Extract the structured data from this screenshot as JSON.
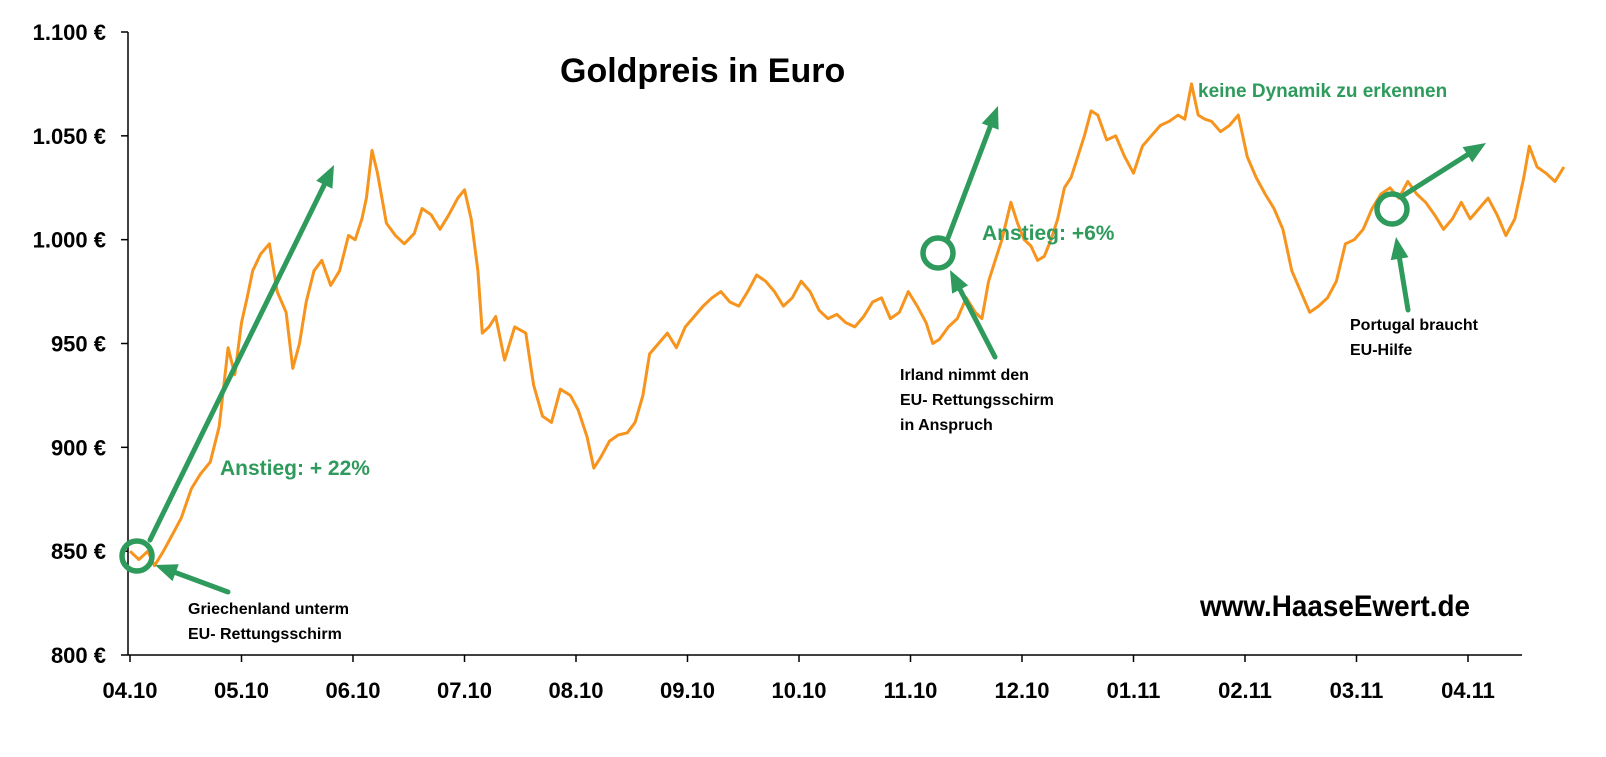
{
  "chart_data": {
    "type": "line",
    "title": "Goldpreis in Euro",
    "xlabel": "",
    "ylabel": "",
    "ylim": [
      800,
      1100
    ],
    "y_ticks": [
      "800 €",
      "850 €",
      "900 €",
      "950 €",
      "1.000 €",
      "1.050 €",
      "1.100 €"
    ],
    "x_ticks": [
      "04.10",
      "05.10",
      "06.10",
      "07.10",
      "08.10",
      "09.10",
      "10.10",
      "11.10",
      "12.10",
      "01.11",
      "02.11",
      "03.11",
      "04.11"
    ],
    "x_range_months": [
      0,
      12.6
    ],
    "line_color": "#f7941d",
    "annotation_color": "#2e9a5c",
    "series": [
      {
        "name": "",
        "points": [
          [
            0.0,
            850
          ],
          [
            0.08,
            846
          ],
          [
            0.16,
            850
          ],
          [
            0.22,
            843
          ],
          [
            0.3,
            850
          ],
          [
            0.38,
            858
          ],
          [
            0.46,
            866
          ],
          [
            0.55,
            880
          ],
          [
            0.63,
            887
          ],
          [
            0.72,
            893
          ],
          [
            0.8,
            910
          ],
          [
            0.88,
            948
          ],
          [
            0.94,
            935
          ],
          [
            1.0,
            960
          ],
          [
            1.05,
            972
          ],
          [
            1.1,
            985
          ],
          [
            1.17,
            993
          ],
          [
            1.25,
            998
          ],
          [
            1.32,
            975
          ],
          [
            1.4,
            965
          ],
          [
            1.46,
            938
          ],
          [
            1.52,
            950
          ],
          [
            1.58,
            970
          ],
          [
            1.65,
            985
          ],
          [
            1.72,
            990
          ],
          [
            1.8,
            978
          ],
          [
            1.88,
            985
          ],
          [
            1.96,
            1002
          ],
          [
            2.02,
            1000
          ],
          [
            2.08,
            1010
          ],
          [
            2.12,
            1020
          ],
          [
            2.17,
            1043
          ],
          [
            2.22,
            1032
          ],
          [
            2.3,
            1008
          ],
          [
            2.38,
            1002
          ],
          [
            2.46,
            998
          ],
          [
            2.55,
            1003
          ],
          [
            2.62,
            1015
          ],
          [
            2.7,
            1012
          ],
          [
            2.78,
            1005
          ],
          [
            2.86,
            1012
          ],
          [
            2.94,
            1020
          ],
          [
            3.0,
            1024
          ],
          [
            3.06,
            1010
          ],
          [
            3.12,
            985
          ],
          [
            3.16,
            955
          ],
          [
            3.22,
            958
          ],
          [
            3.28,
            963
          ],
          [
            3.36,
            942
          ],
          [
            3.45,
            958
          ],
          [
            3.55,
            955
          ],
          [
            3.62,
            930
          ],
          [
            3.7,
            915
          ],
          [
            3.78,
            912
          ],
          [
            3.86,
            928
          ],
          [
            3.95,
            925
          ],
          [
            4.02,
            918
          ],
          [
            4.1,
            905
          ],
          [
            4.16,
            890
          ],
          [
            4.22,
            895
          ],
          [
            4.3,
            903
          ],
          [
            4.38,
            906
          ],
          [
            4.46,
            907
          ],
          [
            4.53,
            912
          ],
          [
            4.6,
            925
          ],
          [
            4.66,
            945
          ],
          [
            4.74,
            950
          ],
          [
            4.82,
            955
          ],
          [
            4.9,
            948
          ],
          [
            4.98,
            958
          ],
          [
            5.06,
            963
          ],
          [
            5.14,
            968
          ],
          [
            5.22,
            972
          ],
          [
            5.3,
            975
          ],
          [
            5.38,
            970
          ],
          [
            5.46,
            968
          ],
          [
            5.54,
            975
          ],
          [
            5.62,
            983
          ],
          [
            5.7,
            980
          ],
          [
            5.78,
            975
          ],
          [
            5.86,
            968
          ],
          [
            5.94,
            972
          ],
          [
            6.02,
            980
          ],
          [
            6.1,
            975
          ],
          [
            6.18,
            966
          ],
          [
            6.26,
            962
          ],
          [
            6.34,
            964
          ],
          [
            6.42,
            960
          ],
          [
            6.5,
            958
          ],
          [
            6.58,
            963
          ],
          [
            6.66,
            970
          ],
          [
            6.74,
            972
          ],
          [
            6.82,
            962
          ],
          [
            6.9,
            965
          ],
          [
            6.98,
            975
          ],
          [
            7.06,
            968
          ],
          [
            7.14,
            960
          ],
          [
            7.2,
            950
          ],
          [
            7.26,
            952
          ],
          [
            7.34,
            958
          ],
          [
            7.42,
            962
          ],
          [
            7.5,
            972
          ],
          [
            7.58,
            965
          ],
          [
            7.64,
            962
          ],
          [
            7.7,
            980
          ],
          [
            7.76,
            990
          ],
          [
            7.82,
            1000
          ],
          [
            7.9,
            1018
          ],
          [
            7.96,
            1008
          ],
          [
            8.02,
            1000
          ],
          [
            8.08,
            997
          ],
          [
            8.14,
            990
          ],
          [
            8.2,
            992
          ],
          [
            8.26,
            1000
          ],
          [
            8.32,
            1010
          ],
          [
            8.38,
            1025
          ],
          [
            8.44,
            1030
          ],
          [
            8.5,
            1040
          ],
          [
            8.56,
            1050
          ],
          [
            8.62,
            1062
          ],
          [
            8.68,
            1060
          ],
          [
            8.76,
            1048
          ],
          [
            8.84,
            1050
          ],
          [
            8.92,
            1040
          ],
          [
            9.0,
            1032
          ],
          [
            9.08,
            1045
          ],
          [
            9.16,
            1050
          ],
          [
            9.24,
            1055
          ],
          [
            9.32,
            1057
          ],
          [
            9.4,
            1060
          ],
          [
            9.46,
            1058
          ],
          [
            9.52,
            1075
          ],
          [
            9.58,
            1060
          ],
          [
            9.64,
            1058
          ],
          [
            9.7,
            1057
          ],
          [
            9.78,
            1052
          ],
          [
            9.86,
            1055
          ],
          [
            9.94,
            1060
          ],
          [
            10.02,
            1040
          ],
          [
            10.1,
            1030
          ],
          [
            10.18,
            1022
          ],
          [
            10.26,
            1015
          ],
          [
            10.34,
            1005
          ],
          [
            10.42,
            985
          ],
          [
            10.5,
            975
          ],
          [
            10.58,
            965
          ],
          [
            10.66,
            968
          ],
          [
            10.74,
            972
          ],
          [
            10.82,
            980
          ],
          [
            10.9,
            998
          ],
          [
            10.98,
            1000
          ],
          [
            11.06,
            1005
          ],
          [
            11.14,
            1015
          ],
          [
            11.22,
            1022
          ],
          [
            11.3,
            1025
          ],
          [
            11.38,
            1020
          ],
          [
            11.46,
            1028
          ],
          [
            11.54,
            1022
          ],
          [
            11.62,
            1018
          ],
          [
            11.7,
            1012
          ],
          [
            11.78,
            1005
          ],
          [
            11.86,
            1010
          ],
          [
            11.94,
            1018
          ],
          [
            12.02,
            1010
          ],
          [
            12.1,
            1015
          ],
          [
            12.18,
            1020
          ],
          [
            12.26,
            1012
          ],
          [
            12.34,
            1002
          ],
          [
            12.42,
            1010
          ],
          [
            12.5,
            1030
          ],
          [
            12.55,
            1045
          ],
          [
            12.62,
            1035
          ],
          [
            12.7,
            1032
          ],
          [
            12.78,
            1028
          ],
          [
            12.86,
            1035
          ]
        ]
      }
    ],
    "annotations": {
      "anstieg_22": "Anstieg: + 22%",
      "anstieg_6": "Anstieg: +6%",
      "keine_dynamik": "keine Dynamik zu erkennen",
      "griechenland_line1": "Griechenland unterm",
      "griechenland_line2": "EU- Rettungsschirm",
      "irland_line1": "Irland nimmt den",
      "irland_line2": "EU- Rettungsschirm",
      "irland_line3": "in Anspruch",
      "portugal_line1": "Portugal braucht",
      "portugal_line2": "EU-Hilfe",
      "watermark": "www.HaaseEwert.de"
    }
  }
}
